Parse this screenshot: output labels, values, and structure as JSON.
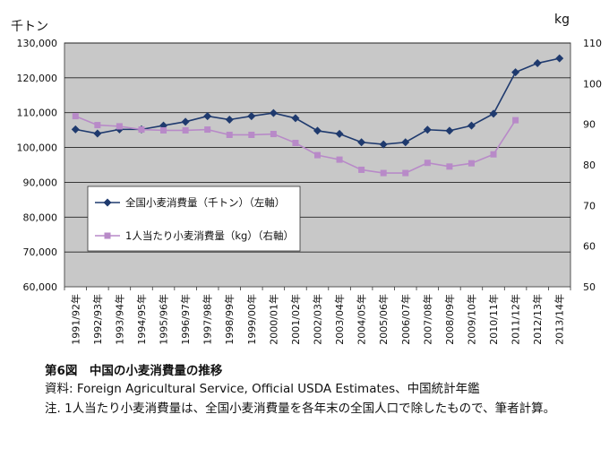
{
  "chart_data": {
    "type": "line",
    "categories": [
      "1991/92年",
      "1992/93年",
      "1993/94年",
      "1994/95年",
      "1995/96年",
      "1996/97年",
      "1997/98年",
      "1998/99年",
      "1999/00年",
      "2000/01年",
      "2001/02年",
      "2002/03年",
      "2003/04年",
      "2004/05年",
      "2005/06年",
      "2006/07年",
      "2007/08年",
      "2008/09年",
      "2009/10年",
      "2010/11年",
      "2011/12年",
      "2012/13年",
      "2013/14年"
    ],
    "y_left": {
      "unit": "千トン",
      "ylim": [
        60000,
        130000
      ],
      "ticks": [
        60000,
        70000,
        80000,
        90000,
        100000,
        110000,
        120000,
        130000
      ],
      "tick_labels": [
        "60,000",
        "70,000",
        "80,000",
        "90,000",
        "100,000",
        "110,000",
        "120,000",
        "130,000"
      ]
    },
    "y_right": {
      "unit": "kg",
      "ylim": [
        50,
        110
      ],
      "ticks": [
        50,
        60,
        70,
        80,
        90,
        100,
        110
      ],
      "tick_labels": [
        "50",
        "60",
        "70",
        "80",
        "90",
        "100",
        "110"
      ]
    },
    "series": [
      {
        "name": "全国小麦消費量（千トン）（左軸）",
        "axis": "left",
        "color": "#1f3a6e",
        "marker": "diamond",
        "values": [
          105200,
          104000,
          105200,
          105200,
          106300,
          107400,
          109000,
          108000,
          109000,
          109900,
          108400,
          104800,
          103900,
          101500,
          100900,
          101500,
          105100,
          104800,
          106300,
          109700,
          121600,
          124200,
          125600
        ]
      },
      {
        "name": "1人当たり小麦消費量（kg）（右軸）",
        "axis": "right",
        "color": "#b88ac8",
        "marker": "square",
        "values": [
          92.0,
          89.8,
          89.5,
          88.7,
          88.5,
          88.5,
          88.7,
          87.4,
          87.4,
          87.6,
          85.4,
          82.4,
          81.3,
          78.8,
          78.0,
          78.0,
          80.5,
          79.6,
          80.4,
          82.6,
          91.0,
          null,
          null
        ]
      }
    ],
    "grid": true,
    "legend_placement": "center-left"
  },
  "caption": {
    "title": "第6図　中国の小麦消費量の推移",
    "source": "資料: Foreign Agricultural Service, Official USDA Estimates、中国統計年鑑",
    "note": "注. 1人当たり小麦消費量は、全国小麦消費量を各年末の全国人口で除したもので、筆者計算。"
  }
}
